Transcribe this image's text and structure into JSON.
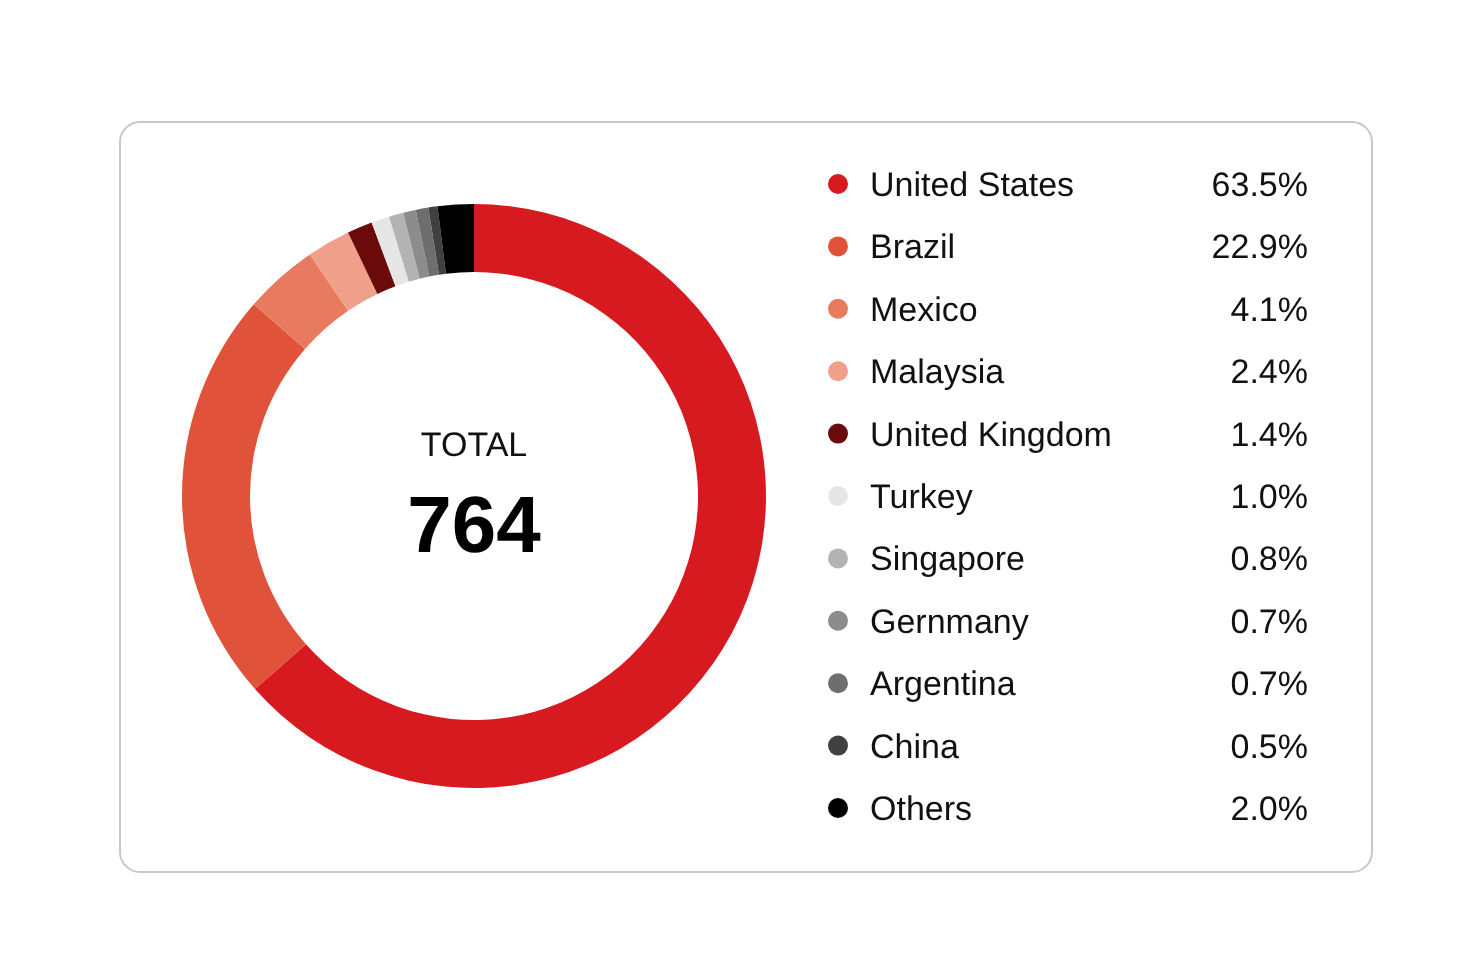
{
  "chart_data": {
    "type": "donut",
    "categories": [
      "United States",
      "Brazil",
      "Mexico",
      "Malaysia",
      "United Kingdom",
      "Turkey",
      "Singapore",
      "Gernmany",
      "Argentina",
      "China",
      "Others"
    ],
    "values": [
      63.5,
      22.9,
      4.1,
      2.4,
      1.4,
      1.0,
      0.8,
      0.7,
      0.7,
      0.5,
      2.0
    ],
    "value_labels": [
      "63.5%",
      "22.9%",
      "4.1%",
      "2.4%",
      "1.4%",
      "1.0%",
      "0.8%",
      "0.7%",
      "0.7%",
      "0.5%",
      "2.0%"
    ],
    "colors": [
      "#d71920",
      "#e0533a",
      "#e87a60",
      "#f0a08a",
      "#6b0a0a",
      "#e6e6e6",
      "#b3b3b3",
      "#8c8c8c",
      "#6e6e6e",
      "#404040",
      "#000000"
    ],
    "annotations": [
      "TOTAL",
      "764"
    ],
    "legend": "right"
  }
}
